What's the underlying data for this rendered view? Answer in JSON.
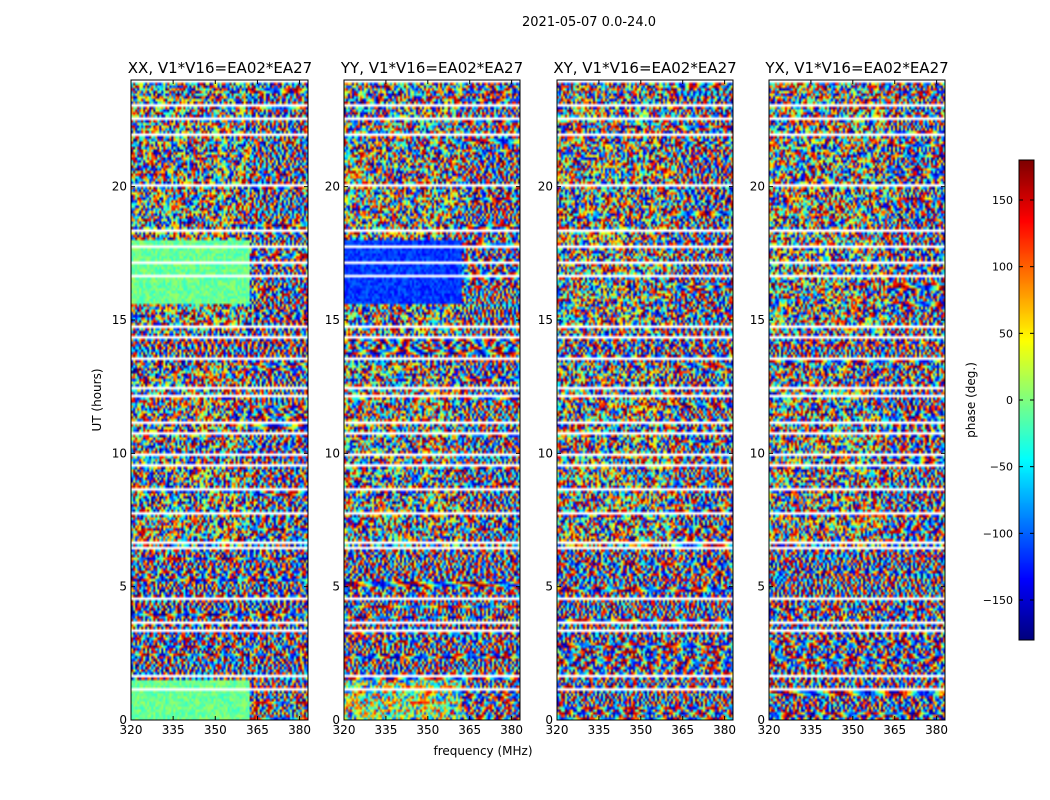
{
  "figure_title": "2021-05-07 0.0-24.0",
  "chart_data": {
    "type": "heatmap",
    "title": "2021-05-07 0.0-24.0",
    "xlabel": "frequency (MHz)",
    "ylabel": "UT (hours)",
    "xlim": [
      320,
      383
    ],
    "ylim": [
      0,
      24
    ],
    "xticks": [
      320,
      335,
      350,
      365,
      380
    ],
    "yticks": [
      0,
      5,
      10,
      15,
      20
    ],
    "panels": [
      {
        "name": "XX, V1*V16=EA02*EA27",
        "pol": "XX"
      },
      {
        "name": "YY, V1*V16=EA02*EA27",
        "pol": "YY"
      },
      {
        "name": "XY, V1*V16=EA02*EA27",
        "pol": "XY"
      },
      {
        "name": "YX, V1*V16=EA02*EA27",
        "pol": "YX"
      }
    ],
    "colorbar": {
      "label": "phase (deg.)",
      "range": [
        -180,
        180
      ],
      "ticks": [
        150,
        100,
        50,
        0,
        -50,
        -100,
        -150
      ],
      "tick_labels": [
        "150",
        "100",
        "50",
        "0",
        "−50",
        "−100",
        "−150"
      ],
      "colormap": "jet"
    },
    "flagged_ut_hours": [
      1.1,
      1.6,
      3.3,
      3.6,
      4.5,
      6.4,
      6.6,
      7.7,
      8.6,
      9.5,
      9.9,
      10.7,
      11.1,
      12.1,
      12.4,
      13.5,
      14.3,
      14.7,
      16.6,
      17.1,
      17.7,
      18.3,
      20.0,
      21.9,
      22.5,
      23.0
    ],
    "band_edge_mhz": 362
  },
  "colors": {
    "axis": "#000000",
    "flag": "#ffffff"
  }
}
